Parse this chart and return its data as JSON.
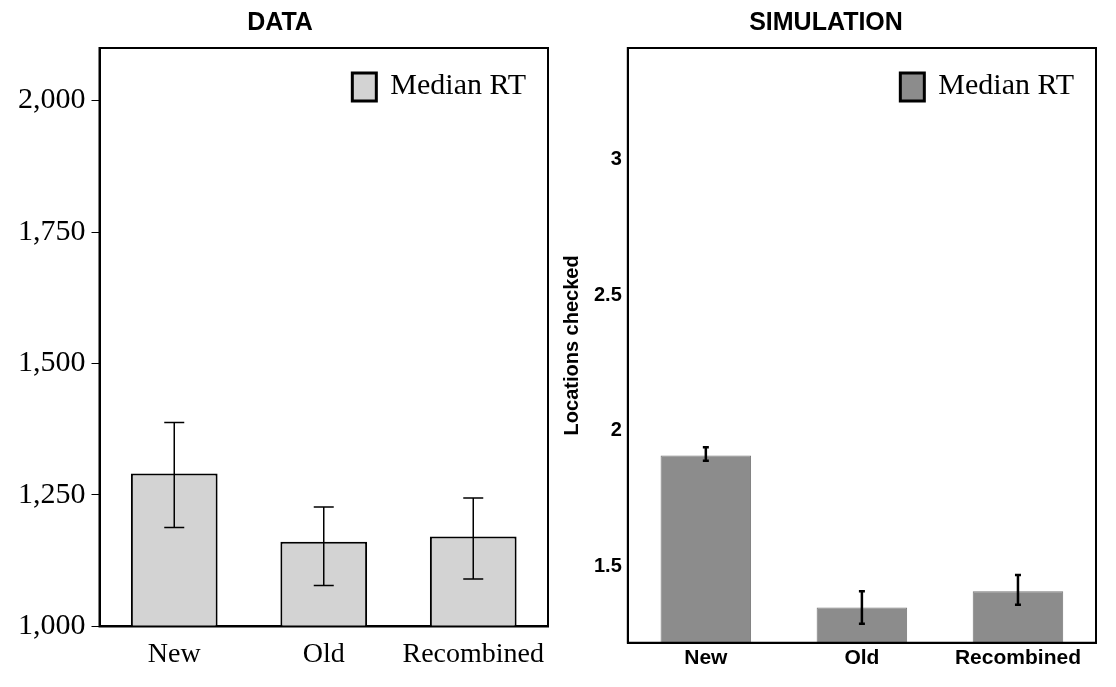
{
  "chart_data": [
    {
      "type": "bar",
      "title": "DATA",
      "categories": [
        "New",
        "Old",
        "Recombined"
      ],
      "series": [
        {
          "name": "Median RT",
          "color": "#d3d3d3",
          "values": [
            1291,
            1161,
            1171
          ],
          "errors": [
            [
              1188,
              1388
            ],
            [
              1078,
              1227
            ],
            [
              1090,
              1244
            ]
          ]
        }
      ],
      "ylim": [
        1000,
        2100
      ],
      "yticks": [
        {
          "value": 1000,
          "label": "1,000"
        },
        {
          "value": 1250,
          "label": "1,250"
        },
        {
          "value": 1500,
          "label": "1,500"
        },
        {
          "value": 1750,
          "label": "1,750"
        },
        {
          "value": 2000,
          "label": "2,000"
        }
      ],
      "grid": false,
      "legend": "top right"
    },
    {
      "type": "bar",
      "title": "SIMULATION",
      "ylabel": "Locations checked",
      "categories": [
        "New",
        "Old",
        "Recombined"
      ],
      "series": [
        {
          "name": "Median RT",
          "color": "#8c8c8c",
          "values": [
            1.91,
            1.35,
            1.41
          ],
          "errors": [
            [
              1.89,
              1.94
            ],
            [
              1.29,
              1.41
            ],
            [
              1.36,
              1.47
            ]
          ]
        }
      ],
      "ylim": [
        1.22,
        3.41
      ],
      "yticks": [
        1.5,
        2,
        2.5,
        3
      ],
      "grid": false,
      "legend": "top right"
    }
  ]
}
